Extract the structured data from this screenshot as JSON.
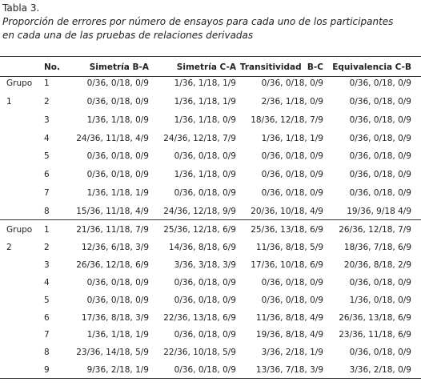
{
  "header": {
    "title": "Tabla 3.",
    "caption": [
      "Proporción de errores por número de ensayos para cada uno de los participantes",
      "en cada una de las pruebas de relaciones derivadas"
    ]
  },
  "table": {
    "columns": [
      "No.",
      "Simetría B-A",
      "Simetría C-A",
      "Transitividad  B-C",
      "Equivalencia C-B"
    ],
    "groups": [
      {
        "label": [
          "Grupo",
          "1"
        ],
        "rows": [
          {
            "no": 1,
            "cells": [
              "0/36, 0/18, 0/9",
              "1/36, 1/18, 1/9",
              "0/36, 0/18, 0/9",
              "0/36, 0/18, 0/9"
            ]
          },
          {
            "no": 2,
            "cells": [
              "0/36, 0/18, 0/9",
              "1/36, 1/18, 1/9",
              "2/36, 1/18, 0/9",
              "0/36, 0/18, 0/9"
            ]
          },
          {
            "no": 3,
            "cells": [
              "1/36, 1/18, 0/9",
              "1/36, 1/18, 0/9",
              "18/36, 12/18, 7/9",
              "0/36, 0/18, 0/9"
            ]
          },
          {
            "no": 4,
            "cells": [
              "24/36, 11/18, 4/9",
              "24/36, 12/18, 7/9",
              "1/36, 1/18, 1/9",
              "0/36, 0/18, 0/9"
            ]
          },
          {
            "no": 5,
            "cells": [
              "0/36, 0/18, 0/9",
              "0/36, 0/18, 0/9",
              "0/36, 0/18, 0/9",
              "0/36, 0/18, 0/9"
            ]
          },
          {
            "no": 6,
            "cells": [
              "0/36, 0/18, 0/9",
              "1/36, 1/18, 0/9",
              "0/36, 0/18, 0/9",
              "0/36, 0/18, 0/9"
            ]
          },
          {
            "no": 7,
            "cells": [
              "1/36, 1/18, 1/9",
              "0/36, 0/18, 0/9",
              "0/36, 0/18, 0/9",
              "0/36, 0/18, 0/9"
            ]
          },
          {
            "no": 8,
            "cells": [
              "15/36, 11/18, 4/9",
              "24/36, 12/18, 9/9",
              "20/36, 10/18, 4/9",
              "19/36, 9/18 4/9"
            ]
          }
        ]
      },
      {
        "label": [
          "Grupo",
          "2"
        ],
        "rows": [
          {
            "no": 1,
            "cells": [
              "21/36, 11/18, 7/9",
              "25/36, 12/18, 6/9",
              "25/36, 13/18, 6/9",
              "26/36, 12/18, 7/9"
            ]
          },
          {
            "no": 2,
            "cells": [
              "12/36, 6/18, 3/9",
              "14/36, 8/18, 6/9",
              "11/36, 8/18, 5/9",
              "18/36, 7/18, 6/9"
            ]
          },
          {
            "no": 3,
            "cells": [
              "26/36, 12/18, 6/9",
              "3/36, 3/18, 3/9",
              "17/36, 10/18, 6/9",
              "20/36, 8/18, 2/9"
            ]
          },
          {
            "no": 4,
            "cells": [
              "0/36, 0/18, 0/9",
              "0/36, 0/18, 0/9",
              "0/36, 0/18, 0/9",
              "0/36, 0/18, 0/9"
            ]
          },
          {
            "no": 5,
            "cells": [
              "0/36, 0/18, 0/9",
              "0/36, 0/18, 0/9",
              "0/36, 0/18, 0/9",
              "1/36, 0/18, 0/9"
            ]
          },
          {
            "no": 6,
            "cells": [
              "17/36, 8/18, 3/9",
              "22/36, 13/18, 6/9",
              "11/36, 8/18, 4/9",
              "26/36, 13/18, 6/9"
            ]
          },
          {
            "no": 7,
            "cells": [
              "1/36, 1/18, 1/9",
              "0/36, 0/18, 0/9",
              "19/36, 8/18, 4/9",
              "23/36, 11/18, 6/9"
            ]
          },
          {
            "no": 8,
            "cells": [
              "23/36, 14/18, 5/9",
              "22/36, 10/18, 5/9",
              "3/36, 2/18, 1/9",
              "0/36, 0/18, 0/9"
            ]
          },
          {
            "no": 9,
            "cells": [
              "9/36, 2/18, 1/9",
              "0/36, 0/18, 0/9",
              "13/36, 7/18, 3/9",
              "3/36, 2/18, 0/9"
            ]
          }
        ]
      }
    ]
  }
}
